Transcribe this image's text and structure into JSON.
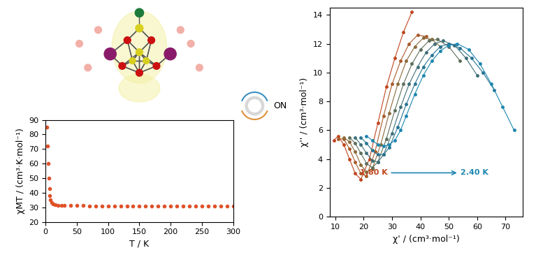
{
  "chart_data": [
    {
      "type": "scatter",
      "x_label": "T / K",
      "y_label": "χMT / (cm³·K·mol⁻¹)",
      "xlim": [
        0,
        300
      ],
      "xticks": [
        0,
        50,
        100,
        150,
        200,
        250,
        300
      ],
      "ylim": [
        20,
        90
      ],
      "yticks": [
        20,
        30,
        40,
        50,
        60,
        70,
        80,
        90
      ],
      "series": [
        {
          "color": "#e0522a",
          "marker": "circle",
          "line_style": "none",
          "x": [
            2,
            3,
            4,
            5,
            6,
            7,
            8,
            10,
            12,
            15,
            20,
            25,
            30,
            40,
            50,
            60,
            70,
            80,
            90,
            100,
            110,
            120,
            130,
            140,
            150,
            160,
            170,
            180,
            190,
            200,
            210,
            220,
            230,
            240,
            250,
            260,
            270,
            280,
            290,
            300
          ],
          "values": [
            85,
            72,
            60,
            50,
            43,
            38,
            35,
            33,
            32.2,
            31.8,
            31.5,
            31.3,
            31.2,
            31.1,
            31.1,
            31.1,
            31.0,
            31.0,
            31.0,
            31.0,
            31.0,
            31.0,
            31.0,
            31.0,
            31.0,
            31.0,
            31.0,
            31.0,
            31.0,
            31.0,
            31.0,
            31.0,
            31.0,
            31.0,
            31.0,
            31.0,
            31.0,
            31.0,
            31.0,
            31.0
          ]
        }
      ]
    },
    {
      "type": "scatter",
      "x_label": "χ' / (cm³·mol⁻¹)",
      "y_label": "χ'' / (cm³·mol⁻¹)",
      "xlim": [
        8,
        76
      ],
      "xticks": [
        10,
        20,
        30,
        40,
        50,
        60,
        70
      ],
      "ylim": [
        0,
        14.5
      ],
      "yticks": [
        0,
        2,
        4,
        6,
        8,
        10,
        12,
        14
      ],
      "annotations": [
        "1.80 K",
        "2.40 K"
      ],
      "series": [
        {
          "color": "#c0461e",
          "marker": "circle",
          "line_style": "solid",
          "x": [
            9.5,
            11,
            13,
            15,
            17,
            19,
            22,
            25,
            28,
            31,
            34,
            37
          ],
          "values": [
            5.3,
            5.6,
            5.0,
            4.0,
            3.0,
            2.6,
            4.0,
            6.5,
            9.0,
            11.0,
            12.8,
            14.2
          ]
        },
        {
          "color": "#a85a2a",
          "marker": "circle",
          "line_style": "solid",
          "x": [
            11,
            13,
            15,
            17,
            19,
            21,
            24,
            27,
            30,
            33,
            36,
            39,
            42
          ],
          "values": [
            5.4,
            5.4,
            4.7,
            3.8,
            3.0,
            2.8,
            4.5,
            7.0,
            9.2,
            10.8,
            12.0,
            12.6,
            12.5
          ]
        },
        {
          "color": "#8a6a3a",
          "marker": "circle",
          "line_style": "solid",
          "x": [
            13,
            15,
            17,
            19,
            21,
            23,
            26,
            29,
            32,
            35,
            38,
            41,
            44,
            47
          ],
          "values": [
            5.5,
            5.2,
            4.5,
            3.6,
            3.1,
            3.3,
            5.0,
            7.2,
            9.2,
            10.8,
            11.8,
            12.4,
            12.3,
            11.8
          ]
        },
        {
          "color": "#5c6e5a",
          "marker": "circle",
          "line_style": "solid",
          "x": [
            15,
            17,
            19,
            21,
            23,
            25,
            28,
            31,
            34,
            37,
            40,
            43,
            46,
            50,
            54
          ],
          "values": [
            5.5,
            5.1,
            4.4,
            3.7,
            3.4,
            3.8,
            5.4,
            7.4,
            9.2,
            10.6,
            11.6,
            12.2,
            12.3,
            11.8,
            10.8
          ]
        },
        {
          "color": "#3f6f78",
          "marker": "circle",
          "line_style": "solid",
          "x": [
            17,
            19,
            21,
            23,
            25,
            27,
            30,
            33,
            36,
            39,
            42,
            45,
            48,
            52,
            56,
            60
          ],
          "values": [
            5.5,
            5.0,
            4.4,
            3.9,
            3.8,
            4.3,
            5.8,
            7.6,
            9.2,
            10.4,
            11.4,
            12.0,
            12.2,
            11.9,
            11.0,
            9.8
          ]
        },
        {
          "color": "#2a7592",
          "marker": "circle",
          "line_style": "solid",
          "x": [
            19,
            21,
            23,
            25,
            27,
            29,
            32,
            35,
            38,
            41,
            44,
            47,
            50,
            54,
            58,
            62,
            66
          ],
          "values": [
            5.5,
            5.1,
            4.6,
            4.3,
            4.3,
            4.8,
            6.2,
            7.8,
            9.2,
            10.4,
            11.2,
            11.8,
            12.0,
            11.7,
            11.0,
            10.0,
            8.8
          ]
        },
        {
          "color": "#1d86b0",
          "marker": "circle",
          "line_style": "solid",
          "x": [
            21,
            23,
            25,
            27,
            29,
            31,
            33,
            35,
            38,
            41,
            44,
            47,
            50,
            53,
            57,
            61,
            65,
            69,
            73
          ],
          "values": [
            5.6,
            5.3,
            5.0,
            4.9,
            5.0,
            5.3,
            6.0,
            7.0,
            8.5,
            9.8,
            10.8,
            11.5,
            11.9,
            12.0,
            11.6,
            10.6,
            9.2,
            7.6,
            6.0
          ]
        }
      ]
    }
  ],
  "switch_label": "ON"
}
